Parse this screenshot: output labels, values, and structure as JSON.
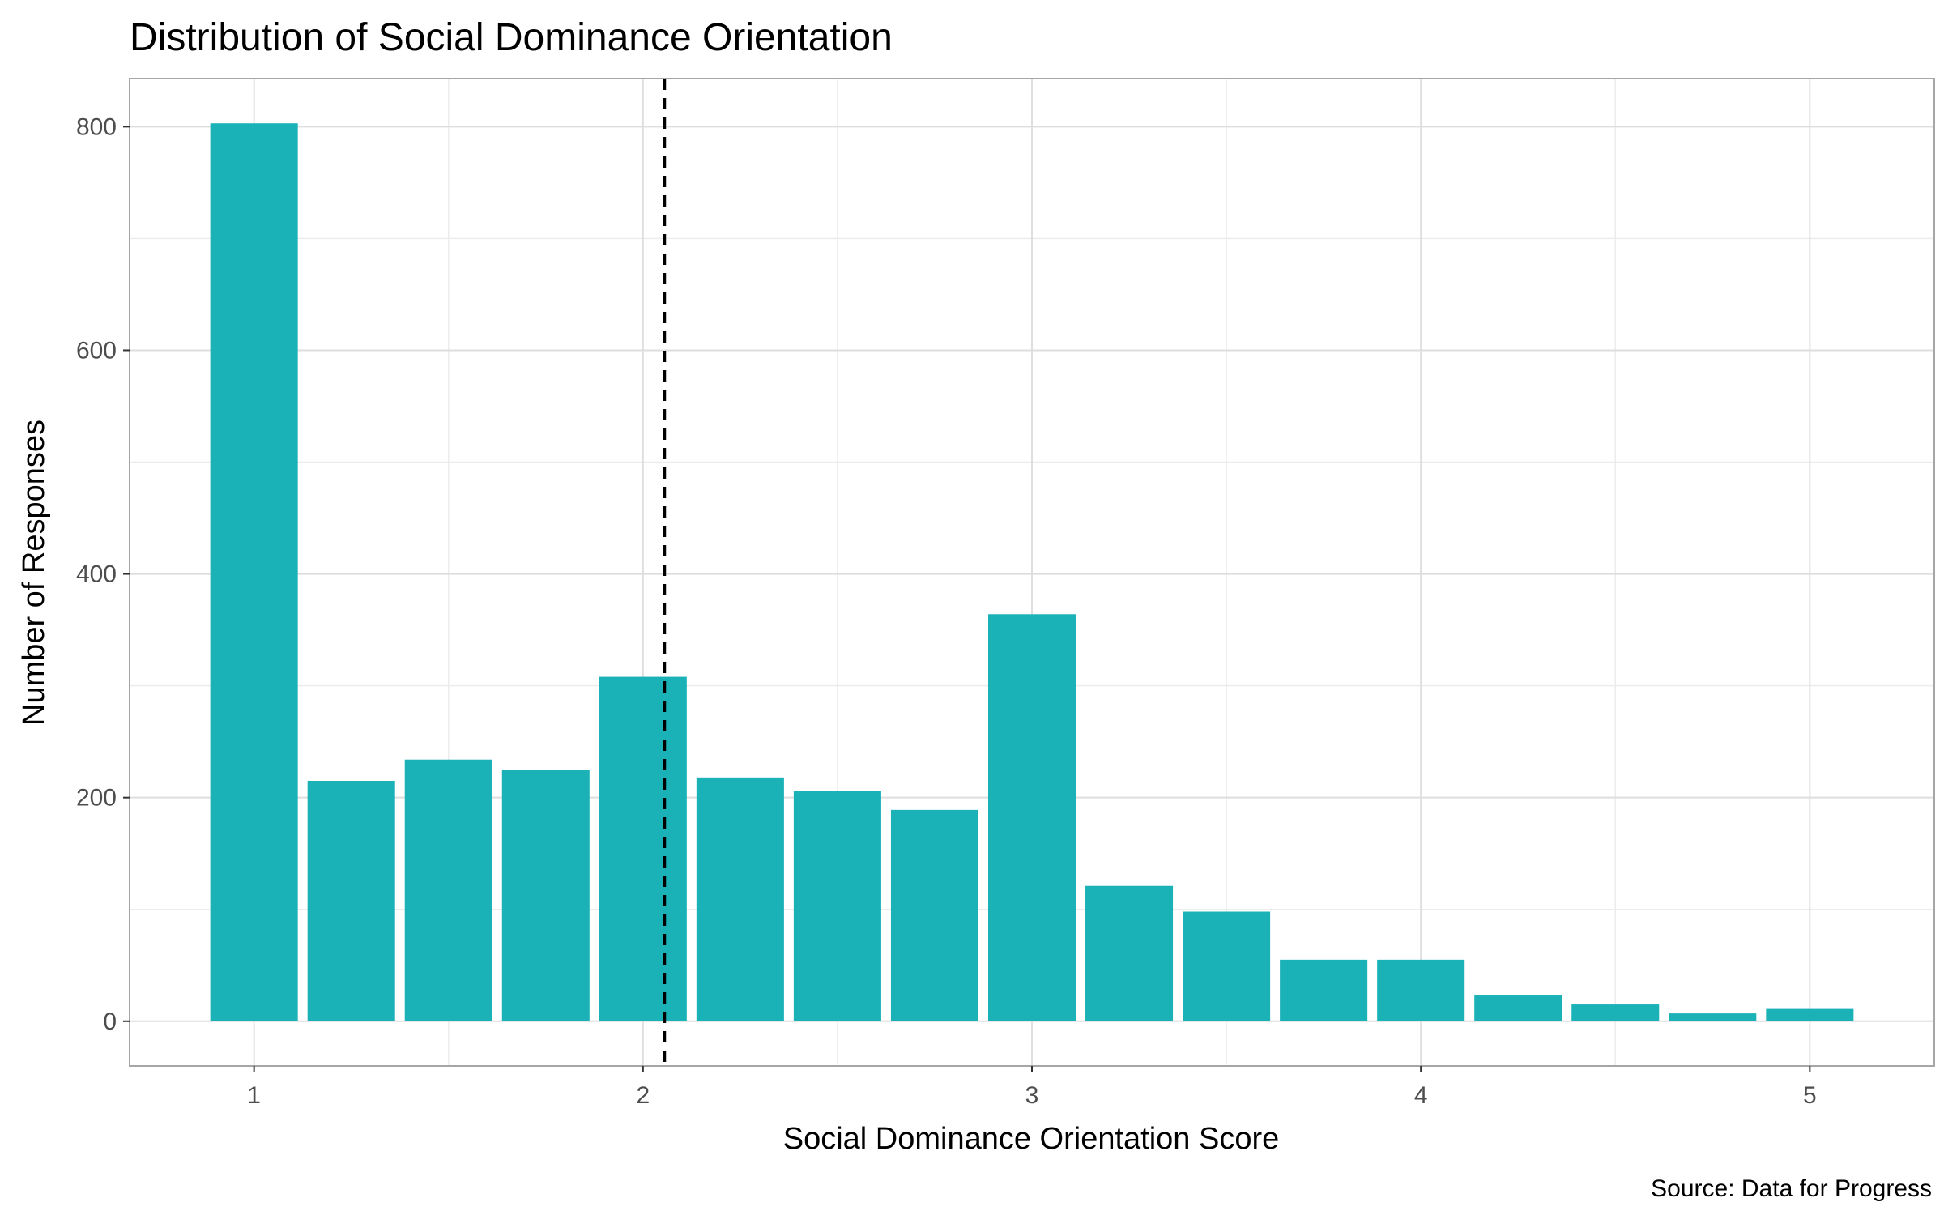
{
  "chart_data": {
    "type": "bar",
    "title": "Distribution of Social Dominance Orientation",
    "xlabel": "Social Dominance Orientation Score",
    "ylabel": "Number of Responses",
    "caption": "Source: Data for Progress",
    "x": [
      1.0,
      1.25,
      1.5,
      1.75,
      2.0,
      2.25,
      2.5,
      2.75,
      3.0,
      3.25,
      3.5,
      3.75,
      4.0,
      4.25,
      4.5,
      4.75,
      5.0
    ],
    "values": [
      803,
      215,
      234,
      225,
      308,
      218,
      206,
      189,
      364,
      121,
      98,
      55,
      55,
      23,
      15,
      7,
      11
    ],
    "bar_width": 0.225,
    "xlim": [
      0.68,
      5.32
    ],
    "ylim": [
      -40,
      843
    ],
    "x_ticks": [
      1,
      2,
      3,
      4,
      5
    ],
    "x_tick_labels": [
      "1",
      "2",
      "3",
      "4",
      "5"
    ],
    "y_ticks": [
      0,
      200,
      400,
      600,
      800
    ],
    "y_tick_labels": [
      "0",
      "200",
      "400",
      "600",
      "800"
    ],
    "reference_line": {
      "x": 2.055,
      "style": "dashed"
    },
    "grid": true,
    "colors": {
      "bar": "#1AB2B7",
      "grid_major": "#dedede",
      "grid_minor": "#ececec",
      "panel_border": "#a6a6a6",
      "reference_line": "#000000"
    }
  }
}
